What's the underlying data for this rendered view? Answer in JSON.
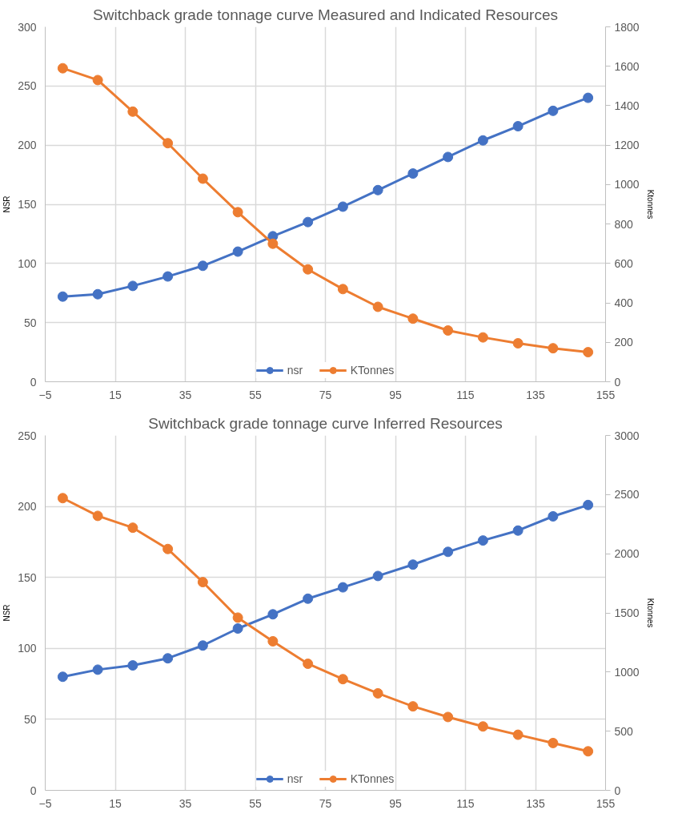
{
  "chart_data": [
    {
      "type": "line",
      "title": "Switchback grade tonnage curve Measured and Indicated Resources",
      "ylabel": "NSR",
      "y2label": "Ktonnes",
      "x": [
        0,
        10,
        20,
        30,
        40,
        50,
        60,
        70,
        80,
        90,
        100,
        110,
        120,
        130,
        140,
        150
      ],
      "series": [
        {
          "name": "nsr",
          "color": "#4472c4",
          "values": [
            72,
            74,
            81,
            89,
            98,
            110,
            123,
            135,
            148,
            162,
            176,
            190,
            204,
            216,
            229,
            240
          ]
        },
        {
          "name": "KTonnes",
          "color": "#ed7d31",
          "axis": "y2",
          "values": [
            1590,
            1530,
            1370,
            1210,
            1030,
            860,
            700,
            570,
            470,
            380,
            320,
            260,
            225,
            195,
            170,
            150
          ]
        }
      ],
      "xlim": [
        -5,
        155
      ],
      "xticks": [
        -5,
        15,
        35,
        55,
        75,
        95,
        115,
        135,
        155
      ],
      "ylim": [
        0,
        300
      ],
      "yticks": [
        0,
        50,
        100,
        150,
        200,
        250,
        300
      ],
      "y2lim": [
        0,
        1800
      ],
      "y2ticks": [
        0,
        200,
        400,
        600,
        800,
        1000,
        1200,
        1400,
        1600,
        1800
      ],
      "grid": true,
      "legend": "bottom",
      "marker": "circle",
      "line_style": "solid"
    },
    {
      "type": "line",
      "title": "Switchback grade tonnage curve Inferred Resources",
      "ylabel": "NSR",
      "y2label": "Ktonnes",
      "x": [
        0,
        10,
        20,
        30,
        40,
        50,
        60,
        70,
        80,
        90,
        100,
        110,
        120,
        130,
        140,
        150
      ],
      "series": [
        {
          "name": "nsr",
          "color": "#4472c4",
          "values": [
            80,
            85,
            88,
            93,
            102,
            114,
            124,
            135,
            143,
            151,
            159,
            168,
            176,
            183,
            193,
            201
          ]
        },
        {
          "name": "KTonnes",
          "color": "#ed7d31",
          "axis": "y2",
          "values": [
            2470,
            2320,
            2220,
            2040,
            1760,
            1460,
            1260,
            1070,
            940,
            820,
            710,
            620,
            540,
            470,
            400,
            330
          ]
        }
      ],
      "xlim": [
        -5,
        155
      ],
      "xticks": [
        -5,
        15,
        35,
        55,
        75,
        95,
        115,
        135,
        155
      ],
      "ylim": [
        0,
        250
      ],
      "yticks": [
        0,
        50,
        100,
        150,
        200,
        250
      ],
      "y2lim": [
        0,
        3000
      ],
      "y2ticks": [
        0,
        500,
        1000,
        1500,
        2000,
        2500,
        3000
      ],
      "grid": true,
      "legend": "bottom",
      "marker": "circle",
      "line_style": "solid"
    }
  ]
}
